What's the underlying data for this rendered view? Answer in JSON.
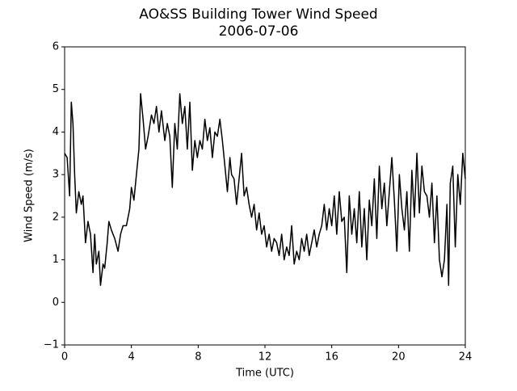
{
  "chart_data": {
    "type": "line",
    "title": "AO&SS Building Tower Wind Speed",
    "subtitle": "2006-07-06",
    "x_label": "Time (UTC)",
    "y_label": "Wind Speed (m/s)",
    "xlim": [
      0,
      24
    ],
    "xticks": [
      0,
      4,
      8,
      12,
      16,
      20,
      24
    ],
    "ylim": [
      -1,
      6
    ],
    "yticks": [
      {
        "value": -1,
        "label": "−1"
      },
      0,
      1,
      2,
      3,
      4,
      5,
      6
    ],
    "grid": false,
    "x": [
      0.0,
      0.15,
      0.3,
      0.4,
      0.5,
      0.6,
      0.7,
      0.85,
      1.0,
      1.1,
      1.25,
      1.4,
      1.55,
      1.7,
      1.8,
      1.9,
      2.05,
      2.15,
      2.3,
      2.4,
      2.55,
      2.65,
      2.8,
      3.0,
      3.2,
      3.35,
      3.5,
      3.7,
      3.9,
      4.0,
      4.15,
      4.3,
      4.45,
      4.55,
      4.7,
      4.85,
      5.0,
      5.2,
      5.35,
      5.5,
      5.65,
      5.8,
      6.0,
      6.15,
      6.3,
      6.45,
      6.6,
      6.75,
      6.9,
      7.05,
      7.2,
      7.35,
      7.5,
      7.65,
      7.8,
      7.95,
      8.1,
      8.25,
      8.4,
      8.55,
      8.7,
      8.85,
      9.0,
      9.15,
      9.3,
      9.45,
      9.6,
      9.75,
      9.9,
      10.0,
      10.15,
      10.3,
      10.45,
      10.6,
      10.75,
      10.9,
      11.05,
      11.2,
      11.35,
      11.5,
      11.65,
      11.8,
      11.95,
      12.1,
      12.25,
      12.4,
      12.55,
      12.7,
      12.85,
      13.0,
      13.15,
      13.3,
      13.45,
      13.6,
      13.75,
      13.9,
      14.05,
      14.2,
      14.35,
      14.5,
      14.65,
      14.8,
      14.95,
      15.1,
      15.25,
      15.4,
      15.55,
      15.7,
      15.85,
      16.0,
      16.15,
      16.3,
      16.45,
      16.6,
      16.75,
      16.9,
      17.05,
      17.2,
      17.35,
      17.5,
      17.65,
      17.8,
      17.95,
      18.1,
      18.25,
      18.4,
      18.55,
      18.7,
      18.85,
      19.0,
      19.15,
      19.3,
      19.45,
      19.6,
      19.75,
      19.9,
      20.05,
      20.2,
      20.35,
      20.5,
      20.65,
      20.8,
      20.95,
      21.1,
      21.25,
      21.4,
      21.55,
      21.7,
      21.85,
      22.0,
      22.15,
      22.3,
      22.45,
      22.6,
      22.75,
      22.9,
      23.0,
      23.1,
      23.25,
      23.4,
      23.55,
      23.7,
      23.85,
      24.0
    ],
    "series": [
      {
        "name": "Wind Speed",
        "color": "#000000",
        "values": [
          3.5,
          3.4,
          2.5,
          4.7,
          4.2,
          3.0,
          2.1,
          2.6,
          2.3,
          2.5,
          1.4,
          1.9,
          1.6,
          0.7,
          1.6,
          0.9,
          1.2,
          0.4,
          0.9,
          0.8,
          1.4,
          1.9,
          1.7,
          1.5,
          1.2,
          1.6,
          1.8,
          1.8,
          2.2,
          2.7,
          2.4,
          3.0,
          3.6,
          4.9,
          4.3,
          3.6,
          3.9,
          4.4,
          4.2,
          4.6,
          4.0,
          4.5,
          3.8,
          4.2,
          3.9,
          2.7,
          4.2,
          3.6,
          4.9,
          4.2,
          4.6,
          3.6,
          4.7,
          3.1,
          3.8,
          3.4,
          3.8,
          3.6,
          4.3,
          3.8,
          4.1,
          3.4,
          4.0,
          3.9,
          4.3,
          3.8,
          3.2,
          2.6,
          3.4,
          3.0,
          2.9,
          2.3,
          2.9,
          3.5,
          2.5,
          2.7,
          2.3,
          2.0,
          2.3,
          1.7,
          2.1,
          1.6,
          1.8,
          1.3,
          1.6,
          1.2,
          1.5,
          1.4,
          1.1,
          1.6,
          1.0,
          1.3,
          1.1,
          1.8,
          0.9,
          1.2,
          1.0,
          1.5,
          1.2,
          1.6,
          1.1,
          1.4,
          1.7,
          1.3,
          1.6,
          1.8,
          2.3,
          1.7,
          2.2,
          1.8,
          2.5,
          1.6,
          2.6,
          1.9,
          2.0,
          0.7,
          2.5,
          1.6,
          2.2,
          1.4,
          2.6,
          1.3,
          2.2,
          1.0,
          2.4,
          1.8,
          2.9,
          1.5,
          3.2,
          2.2,
          2.8,
          1.8,
          2.6,
          3.4,
          2.4,
          1.2,
          3.0,
          2.2,
          1.7,
          2.6,
          1.2,
          3.1,
          2.0,
          3.5,
          2.1,
          3.2,
          2.6,
          2.5,
          2.0,
          2.8,
          1.4,
          2.5,
          1.0,
          0.6,
          1.0,
          2.3,
          0.4,
          2.8,
          3.2,
          1.3,
          3.0,
          2.3,
          3.5,
          2.9
        ]
      }
    ]
  }
}
